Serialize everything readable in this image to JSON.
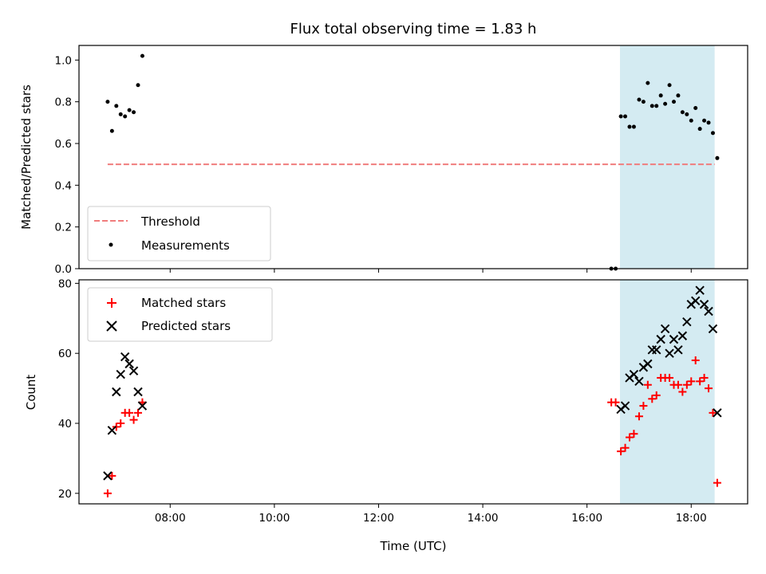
{
  "chart_data": [
    {
      "type": "scatter",
      "title": "Flux total observing time = 1.83 h",
      "ylabel": "Matched/Predicted stars",
      "xlabel": "",
      "xlim": [
        "06:15",
        "19:05"
      ],
      "ylim": [
        0,
        1.07
      ],
      "yticks": [
        0.0,
        0.2,
        0.4,
        0.6,
        0.8,
        1.0
      ],
      "ytick_labels": [
        "0.0",
        "0.2",
        "0.4",
        "0.6",
        "0.8",
        "1.0"
      ],
      "shaded_interval": [
        "16:38",
        "18:27"
      ],
      "shade_color": "#d4ebf2",
      "legend": {
        "position": "lower-left",
        "entries": [
          {
            "label": "Threshold",
            "kind": "dashed-line",
            "color": "#f07d7d"
          },
          {
            "label": "Measurements",
            "kind": "dot",
            "color": "#000000"
          }
        ]
      },
      "series": [
        {
          "name": "Threshold",
          "kind": "line",
          "color": "#f07d7d",
          "x": [
            "06:48",
            "18:27"
          ],
          "y": [
            0.5,
            0.5
          ]
        },
        {
          "name": "Measurements",
          "kind": "dot",
          "color": "#000000",
          "x": [
            "06:48",
            "06:53",
            "06:58",
            "07:03",
            "07:08",
            "07:13",
            "07:18",
            "07:23",
            "07:28",
            "16:28",
            "16:33",
            "16:39",
            "16:44",
            "16:49",
            "16:54",
            "17:00",
            "17:05",
            "17:10",
            "17:15",
            "17:20",
            "17:25",
            "17:30",
            "17:35",
            "17:40",
            "17:45",
            "17:50",
            "17:55",
            "18:00",
            "18:05",
            "18:10",
            "18:15",
            "18:20",
            "18:25",
            "18:30"
          ],
          "y": [
            0.8,
            0.66,
            0.78,
            0.74,
            0.73,
            0.76,
            0.75,
            0.88,
            1.02,
            0.0,
            0.0,
            0.73,
            0.73,
            0.68,
            0.68,
            0.81,
            0.8,
            0.89,
            0.78,
            0.78,
            0.83,
            0.79,
            0.88,
            0.8,
            0.83,
            0.75,
            0.74,
            0.71,
            0.77,
            0.67,
            0.71,
            0.7,
            0.65,
            0.53
          ]
        }
      ]
    },
    {
      "type": "scatter",
      "title": "",
      "ylabel": "Count",
      "xlabel": "Time (UTC)",
      "xlim": [
        "06:15",
        "19:05"
      ],
      "ylim": [
        17,
        81
      ],
      "yticks": [
        20,
        40,
        60,
        80
      ],
      "ytick_labels": [
        "20",
        "40",
        "60",
        "80"
      ],
      "xticks": [
        "08:00",
        "10:00",
        "12:00",
        "14:00",
        "16:00",
        "18:00"
      ],
      "xtick_labels": [
        "08:00",
        "10:00",
        "12:00",
        "14:00",
        "16:00",
        "18:00"
      ],
      "shaded_interval": [
        "16:38",
        "18:27"
      ],
      "shade_color": "#d4ebf2",
      "legend": {
        "position": "top-left",
        "entries": [
          {
            "label": "Matched stars",
            "kind": "plus",
            "color": "#ff0000"
          },
          {
            "label": "Predicted stars",
            "kind": "cross",
            "color": "#000000"
          }
        ]
      },
      "series": [
        {
          "name": "Matched stars",
          "kind": "plus",
          "color": "#ff0000",
          "x": [
            "06:48",
            "06:53",
            "06:58",
            "07:03",
            "07:08",
            "07:13",
            "07:18",
            "07:23",
            "07:28",
            "16:28",
            "16:33",
            "16:39",
            "16:44",
            "16:49",
            "16:54",
            "17:00",
            "17:05",
            "17:10",
            "17:15",
            "17:20",
            "17:25",
            "17:30",
            "17:35",
            "17:40",
            "17:45",
            "17:50",
            "17:55",
            "18:00",
            "18:05",
            "18:10",
            "18:15",
            "18:20",
            "18:25",
            "18:30"
          ],
          "y": [
            20,
            25,
            39,
            40,
            43,
            43,
            41,
            43,
            46,
            46,
            46,
            32,
            33,
            36,
            37,
            42,
            45,
            51,
            47,
            48,
            53,
            53,
            53,
            51,
            51,
            49,
            51,
            52,
            58,
            52,
            53,
            50,
            43,
            23
          ]
        },
        {
          "name": "Predicted stars",
          "kind": "cross",
          "color": "#000000",
          "x": [
            "06:48",
            "06:53",
            "06:58",
            "07:03",
            "07:08",
            "07:13",
            "07:18",
            "07:23",
            "07:28",
            "16:39",
            "16:44",
            "16:49",
            "16:54",
            "17:00",
            "17:05",
            "17:10",
            "17:15",
            "17:20",
            "17:25",
            "17:30",
            "17:35",
            "17:40",
            "17:45",
            "17:50",
            "17:55",
            "18:00",
            "18:05",
            "18:10",
            "18:15",
            "18:20",
            "18:25",
            "18:30"
          ],
          "y": [
            25,
            38,
            49,
            54,
            59,
            57,
            55,
            49,
            45,
            44,
            45,
            53,
            54,
            52,
            56,
            57,
            61,
            61,
            64,
            67,
            60,
            64,
            61,
            65,
            69,
            74,
            75,
            78,
            74,
            72,
            67,
            43
          ]
        }
      ]
    }
  ]
}
